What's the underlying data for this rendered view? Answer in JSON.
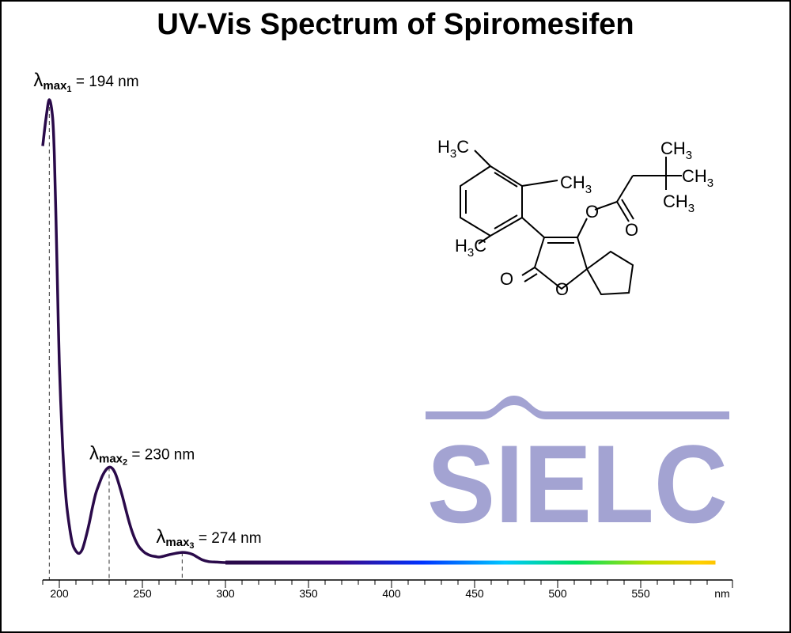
{
  "title": "UV-Vis Spectrum of Spiromesifen",
  "chart_data": {
    "type": "line",
    "title": "UV-Vis Spectrum of Spiromesifen",
    "xlabel": "nm",
    "ylabel": "",
    "xlim": [
      190,
      595
    ],
    "ylim": [
      0,
      1.0
    ],
    "grid": false,
    "x_ticks": [
      200,
      250,
      300,
      350,
      400,
      450,
      500,
      550
    ],
    "series": [
      {
        "x": [
          190,
          192,
          194,
          196,
          197,
          198,
          199,
          200,
          202,
          204,
          206,
          208,
          210,
          212,
          214,
          216,
          218,
          220,
          222,
          224,
          226,
          228,
          230,
          232,
          234,
          236,
          238,
          240,
          242,
          244,
          246,
          248,
          250,
          252,
          255,
          258,
          260,
          263,
          266,
          270,
          274,
          277,
          280,
          283,
          286,
          290,
          295,
          300,
          310,
          350,
          400,
          450,
          500,
          550,
          595
        ],
        "y": [
          0.9,
          0.96,
          1.0,
          0.96,
          0.88,
          0.74,
          0.58,
          0.43,
          0.25,
          0.14,
          0.08,
          0.04,
          0.025,
          0.02,
          0.03,
          0.055,
          0.085,
          0.12,
          0.15,
          0.17,
          0.188,
          0.2,
          0.206,
          0.203,
          0.19,
          0.168,
          0.143,
          0.115,
          0.088,
          0.065,
          0.047,
          0.034,
          0.026,
          0.02,
          0.015,
          0.013,
          0.012,
          0.014,
          0.017,
          0.02,
          0.022,
          0.021,
          0.018,
          0.012,
          0.006,
          0.002,
          0.001,
          0.0,
          0.0,
          0.0,
          0.0,
          0.0,
          0.0,
          0.0,
          0.0
        ]
      }
    ],
    "annotations": [
      {
        "x": 194,
        "symbol": "λ",
        "sub": "max",
        "subsub": "1",
        "text": " = 194 nm"
      },
      {
        "x": 230,
        "symbol": "λ",
        "sub": "max",
        "subsub": "2",
        "text": " = 230 nm"
      },
      {
        "x": 274,
        "symbol": "λ",
        "sub": "max",
        "subsub": "3",
        "text": " = 274 nm"
      }
    ]
  },
  "structure": {
    "groups": {
      "h3c_top": "H3C",
      "ch3_ring": "CH3",
      "h3c_bottom": "H3C",
      "ch3_a": "CH3",
      "ch3_b": "CH3",
      "ch3_c": "CH3",
      "o_ester": "O",
      "o_carbonyl_ester": "O",
      "o_lactone_carbonyl": "O",
      "o_ring": "O"
    }
  },
  "logo": {
    "text": "SIELC",
    "color": "#a3a3d2"
  },
  "colors": {
    "curve_start": "#2a0a4a",
    "spectrum": [
      "#2a0a4a",
      "#3a0a8a",
      "#0033ff",
      "#00c8ff",
      "#00e060",
      "#b8e000",
      "#ffd000",
      "#ffaa00"
    ]
  }
}
